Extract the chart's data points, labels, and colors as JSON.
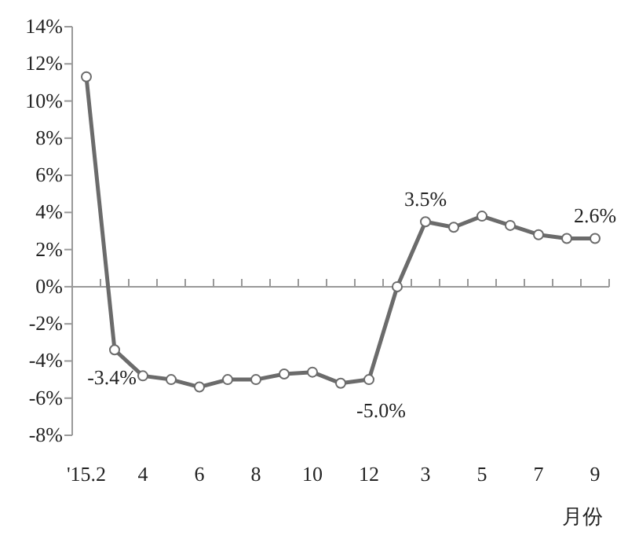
{
  "chart_data": {
    "type": "line",
    "categories": [
      "'15.2",
      null,
      "4",
      null,
      "6",
      null,
      "8",
      null,
      "10",
      null,
      "12",
      null,
      "3",
      null,
      "5",
      null,
      "7",
      null,
      "9"
    ],
    "series": [
      {
        "color": "#6b6b6b",
        "values": [
          11.3,
          -3.4,
          -4.8,
          -5.0,
          -5.4,
          -5.0,
          -5.0,
          -4.7,
          -4.6,
          -5.2,
          -5.0,
          0,
          3.5,
          3.2,
          3.8,
          3.3,
          2.8,
          2.6,
          2.6
        ]
      }
    ],
    "ylim": [
      -8,
      14
    ],
    "yticks": [
      {
        "value": -8,
        "label": "-8%"
      },
      {
        "value": -6,
        "label": "-6%"
      },
      {
        "value": -4,
        "label": "-4%"
      },
      {
        "value": -2,
        "label": "-2%"
      },
      {
        "value": 0,
        "label": "0%"
      },
      {
        "value": 2,
        "label": "2%"
      },
      {
        "value": 4,
        "label": "4%"
      },
      {
        "value": 6,
        "label": "6%"
      },
      {
        "value": 8,
        "label": "8%"
      },
      {
        "value": 10,
        "label": "10%"
      },
      {
        "value": 12,
        "label": "12%"
      },
      {
        "value": 14,
        "label": "14%"
      }
    ],
    "xlabel": "月份",
    "annotations": [
      {
        "text": "-3.4%",
        "y": -3.4
      },
      {
        "text": "-5.0%",
        "x": "12",
        "y": -5.0
      },
      {
        "text": "3.5%",
        "x": "3",
        "y": 3.5
      },
      {
        "text": "2.6%",
        "x": "9",
        "y": 2.6
      }
    ],
    "marker": "circle",
    "line_style": "solid"
  }
}
